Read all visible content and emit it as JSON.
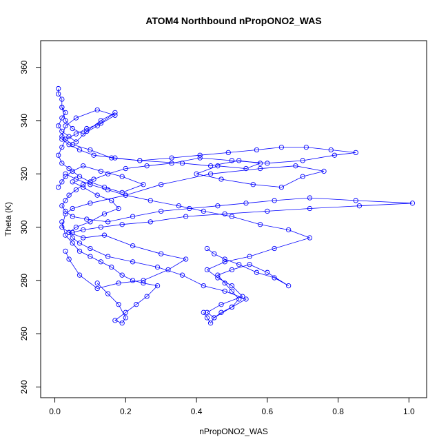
{
  "chart_data": {
    "type": "scatter",
    "title": "ATOM4 Northbound nPropONO2_WAS",
    "xlabel": "nPropONO2_WAS",
    "ylabel": "Theta (K)",
    "xlim": [
      -0.04,
      1.05
    ],
    "ylim": [
      236,
      370
    ],
    "xticks": [
      0.0,
      0.2,
      0.4,
      0.6,
      0.8,
      1.0
    ],
    "xtick_labels": [
      "0.0",
      "0.2",
      "0.4",
      "0.6",
      "0.8",
      "1.0"
    ],
    "yticks": [
      240,
      260,
      280,
      300,
      320,
      340,
      360
    ],
    "ytick_labels": [
      "240",
      "260",
      "280",
      "300",
      "320",
      "340",
      "360"
    ],
    "grid": false,
    "legend": "none",
    "marker": "open-circle",
    "connected": true,
    "series_color": "#0000ff",
    "series": [
      {
        "x": [
          0.02,
          0.03,
          0.05,
          0.08,
          0.12,
          0.17,
          0.12,
          0.06,
          0.03,
          0.02,
          0.05,
          0.1,
          0.16,
          0.24,
          0.36,
          0.44,
          0.52,
          0.58,
          0.54,
          0.46,
          0.4,
          0.47,
          0.56,
          0.64,
          0.7,
          0.76,
          0.68,
          0.58,
          0.44,
          0.3,
          0.2,
          0.1,
          0.05,
          0.03,
          0.02,
          0.04,
          0.08,
          0.14,
          0.22,
          0.3,
          0.37,
          0.32,
          0.25,
          0.18,
          0.12,
          0.07,
          0.04,
          0.03
        ],
        "y": [
          345,
          340,
          337,
          335,
          338,
          342,
          344,
          341,
          338,
          334,
          331,
          329,
          326,
          325,
          324,
          323,
          325,
          324,
          322,
          323,
          320,
          318,
          316,
          315,
          319,
          321,
          323,
          322,
          320,
          316,
          312,
          309,
          307,
          305,
          300,
          298,
          296,
          297,
          293,
          290,
          288,
          284,
          280,
          279,
          277,
          282,
          288,
          291
        ]
      },
      {
        "x": [
          0.03,
          0.06,
          0.1,
          0.15,
          0.2,
          0.27,
          0.35,
          0.42,
          0.5,
          0.58,
          0.66,
          0.72,
          0.62,
          0.55,
          0.48,
          0.43,
          0.46,
          0.5,
          0.53,
          0.47,
          0.43,
          0.45,
          0.5,
          0.54,
          0.48,
          0.42,
          0.36,
          0.29,
          0.22,
          0.15,
          0.1,
          0.07,
          0.05,
          0.04,
          0.06,
          0.1,
          0.14,
          0.18,
          0.16,
          0.12,
          0.08,
          0.05
        ],
        "y": [
          320,
          318,
          316,
          314,
          312,
          310,
          308,
          306,
          304,
          301,
          299,
          296,
          292,
          289,
          287,
          284,
          281,
          278,
          274,
          271,
          268,
          266,
          270,
          273,
          276,
          278,
          282,
          285,
          287,
          289,
          292,
          294,
          296,
          298,
          300,
          302,
          305,
          307,
          310,
          312,
          315,
          317
        ]
      },
      {
        "x": [
          0.02,
          0.04,
          0.07,
          0.11,
          0.17,
          0.24,
          0.33,
          0.41,
          0.49,
          0.57,
          0.64,
          0.71,
          0.78,
          0.85,
          0.79,
          0.7,
          0.6,
          0.5,
          0.41,
          0.33,
          0.26,
          0.2,
          0.15,
          0.11,
          0.08,
          0.06,
          0.04,
          0.03,
          0.02,
          0.03,
          0.05,
          0.09,
          0.15,
          0.22,
          0.3,
          0.38,
          0.46,
          0.54,
          0.62,
          0.72,
          0.85,
          1.01,
          0.86,
          0.72,
          0.6,
          0.48,
          0.37,
          0.27,
          0.19,
          0.13,
          0.08,
          0.05
        ],
        "y": [
          333,
          331,
          329,
          327,
          326,
          325,
          326,
          327,
          328,
          329,
          330,
          330,
          329,
          328,
          327,
          325,
          324,
          325,
          326,
          324,
          323,
          322,
          320,
          318,
          316,
          314,
          312,
          310,
          308,
          306,
          304,
          303,
          302,
          304,
          306,
          307,
          308,
          309,
          310,
          311,
          310,
          309,
          308,
          307,
          306,
          305,
          304,
          302,
          301,
          300,
          299,
          298
        ]
      },
      {
        "x": [
          0.01,
          0.01,
          0.02,
          0.02,
          0.03,
          0.02,
          0.01,
          0.02,
          0.04,
          0.06,
          0.09,
          0.13,
          0.17,
          0.13,
          0.09,
          0.06,
          0.03,
          0.02,
          0.01,
          0.02,
          0.04,
          0.07,
          0.1,
          0.14,
          0.19,
          0.25,
          0.19,
          0.13,
          0.08,
          0.05,
          0.03,
          0.02,
          0.01
        ],
        "y": [
          352,
          350,
          348,
          345,
          343,
          341,
          338,
          336,
          334,
          332,
          336,
          340,
          343,
          339,
          337,
          335,
          333,
          330,
          327,
          324,
          322,
          319,
          317,
          315,
          313,
          316,
          319,
          321,
          323,
          321,
          319,
          317,
          315
        ]
      },
      {
        "x": [
          0.12,
          0.15,
          0.18,
          0.2,
          0.19,
          0.17,
          0.2,
          0.23,
          0.26,
          0.29,
          0.25,
          0.22,
          0.19,
          0.16,
          0.13,
          0.1,
          0.07,
          0.05,
          0.03,
          0.02
        ],
        "y": [
          279,
          275,
          271,
          266,
          264,
          265,
          268,
          271,
          274,
          278,
          279,
          280,
          282,
          285,
          287,
          289,
          291,
          294,
          297,
          302
        ]
      },
      {
        "x": [
          0.42,
          0.43,
          0.44,
          0.45,
          0.47,
          0.5,
          0.52,
          0.5,
          0.48,
          0.46,
          0.5,
          0.55,
          0.6,
          0.66,
          0.62,
          0.57,
          0.52,
          0.48,
          0.45,
          0.43
        ],
        "y": [
          268,
          266,
          264,
          266,
          268,
          270,
          273,
          276,
          279,
          282,
          284,
          286,
          283,
          278,
          281,
          283,
          286,
          288,
          290,
          292
        ]
      }
    ]
  }
}
